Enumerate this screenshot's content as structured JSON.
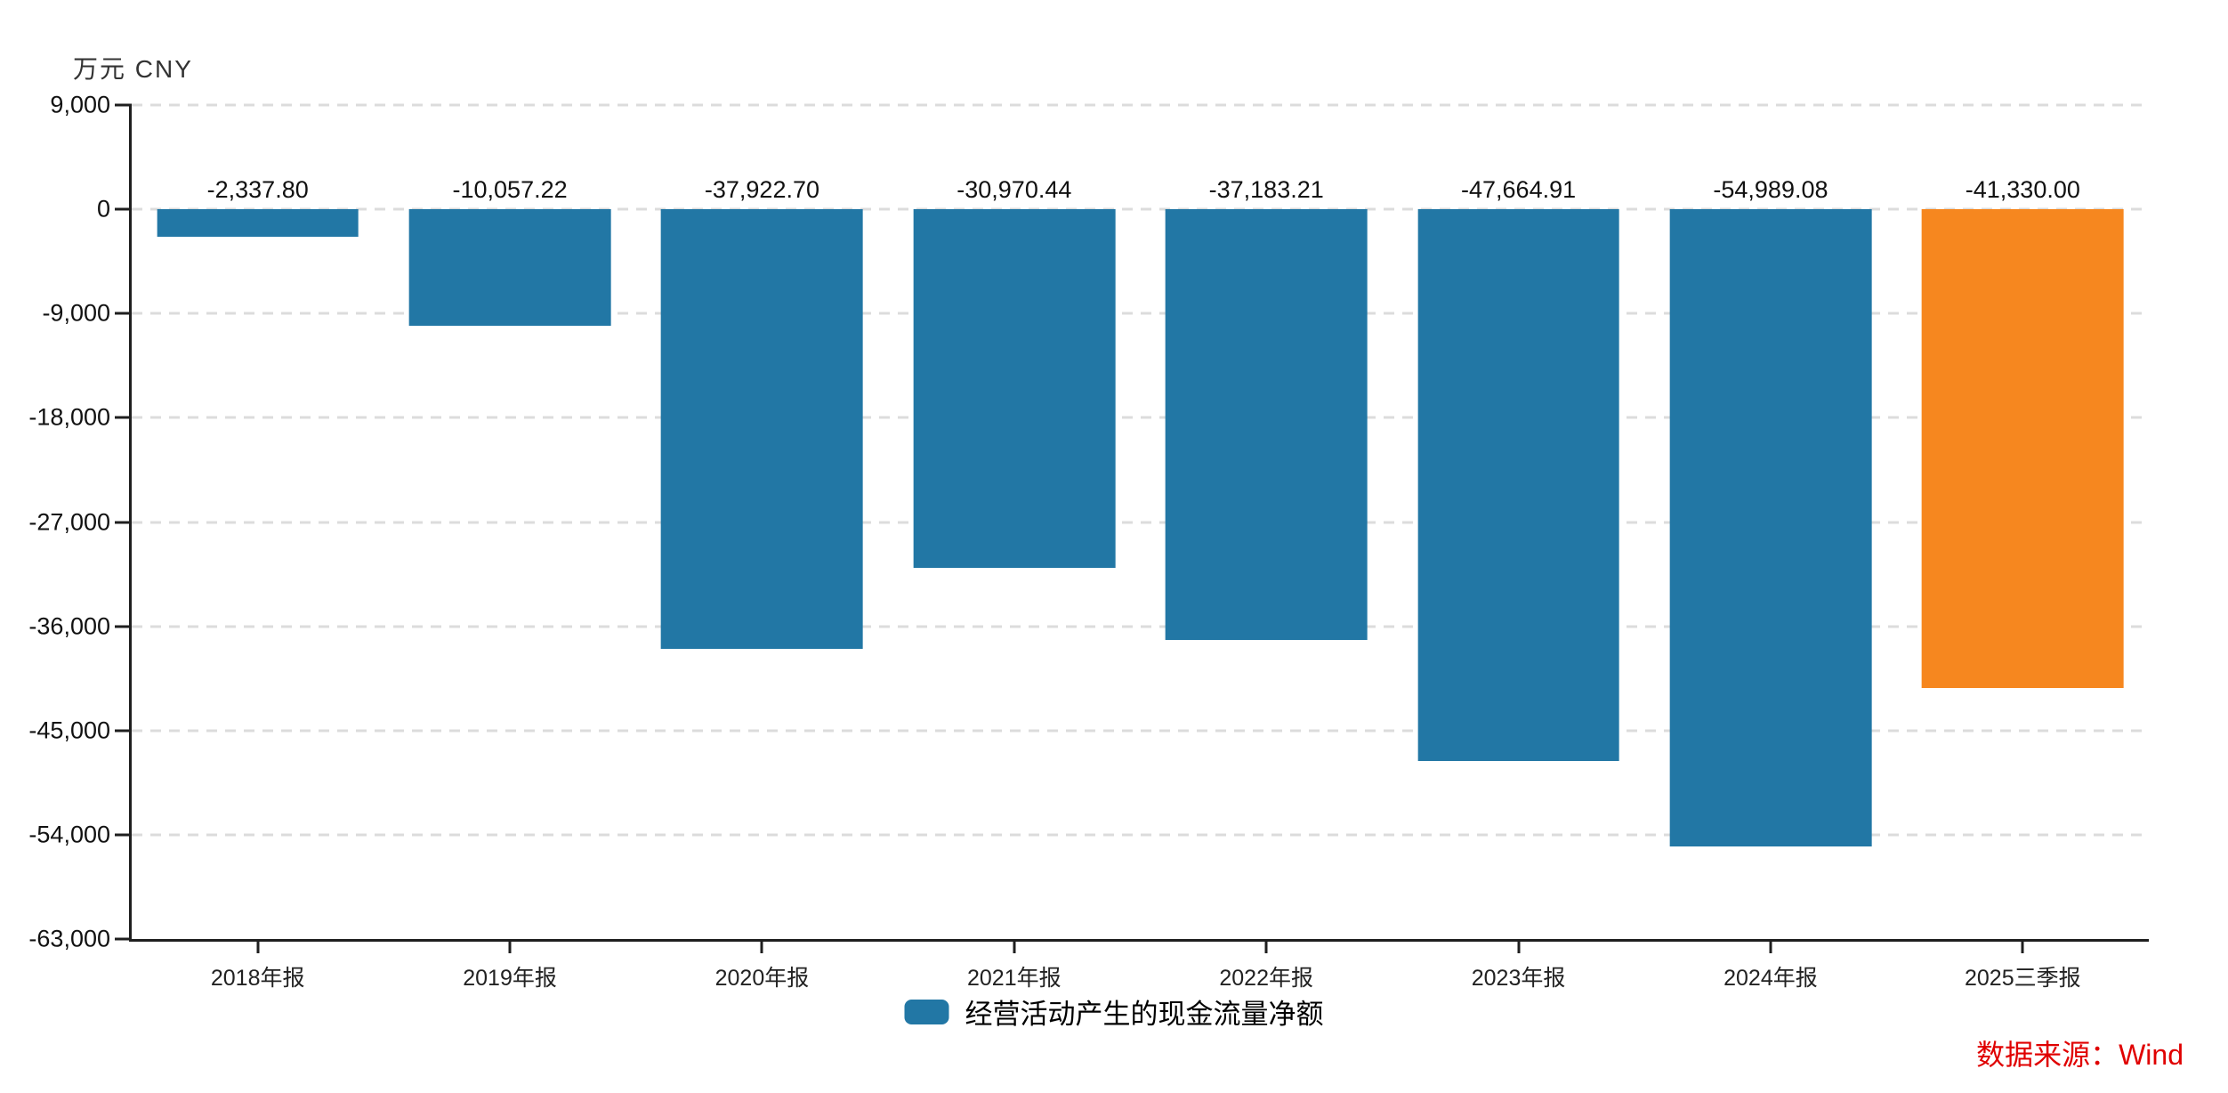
{
  "chart_data": {
    "type": "bar",
    "unit_label": "万元 CNY",
    "categories": [
      "2018年报",
      "2019年报",
      "2020年报",
      "2021年报",
      "2022年报",
      "2023年报",
      "2024年报",
      "2025三季报"
    ],
    "series": [
      {
        "name": "经营活动产生的现金流量净额",
        "values": [
          -2337.8,
          -10057.22,
          -37922.7,
          -30970.44,
          -37183.21,
          -47664.91,
          -54989.08,
          -41330.0
        ],
        "labels": [
          "-2,337.80",
          "-10,057.22",
          "-37,922.70",
          "-30,970.44",
          "-37,183.21",
          "-47,664.91",
          "-54,989.08",
          "-41,330.00"
        ]
      }
    ],
    "ylim": [
      -63000,
      9000
    ],
    "yticks": [
      {
        "value": 9000,
        "label": "9,000"
      },
      {
        "value": 0,
        "label": "0"
      },
      {
        "value": -9000,
        "label": "-9,000"
      },
      {
        "value": -18000,
        "label": "-18,000"
      },
      {
        "value": -27000,
        "label": "-27,000"
      },
      {
        "value": -36000,
        "label": "-36,000"
      },
      {
        "value": -45000,
        "label": "-45,000"
      },
      {
        "value": -54000,
        "label": "-54,000"
      },
      {
        "value": -63000,
        "label": "-63,000"
      }
    ],
    "grid": true,
    "legend": {
      "position": "bottom",
      "entries": [
        "经营活动产生的现金流量净额"
      ]
    },
    "colors": {
      "bar_default": "#2277a5",
      "bar_highlight": "#f6871f",
      "highlight_index": 7,
      "grid": "#dcdcdc",
      "axis": "#1f1f1f",
      "source_text": "#e00000"
    }
  },
  "source_note": "数据来源：Wind"
}
